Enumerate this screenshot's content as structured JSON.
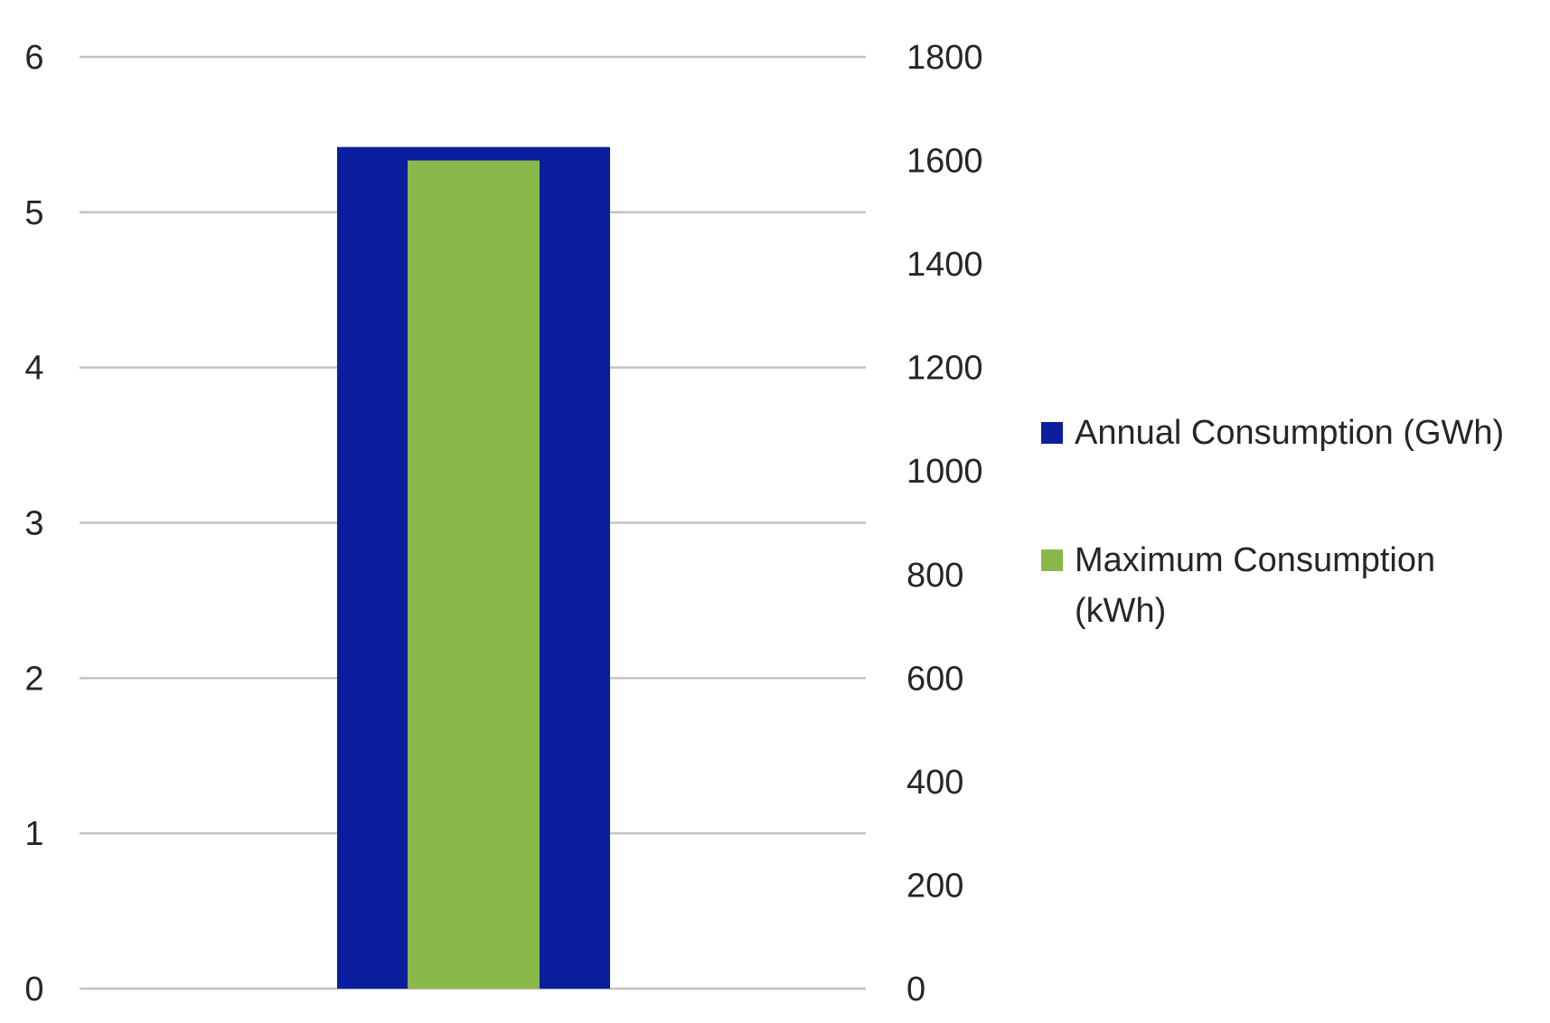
{
  "chart_data": {
    "type": "bar",
    "title": "",
    "xlabel": "",
    "categories": [
      ""
    ],
    "y_left": {
      "ylim": [
        0,
        6
      ],
      "ticks": [
        "0",
        "1",
        "2",
        "3",
        "4",
        "5",
        "6"
      ]
    },
    "y_right": {
      "ylim": [
        0,
        1800
      ],
      "ticks": [
        "0",
        "200",
        "400",
        "600",
        "800",
        "1000",
        "1200",
        "1400",
        "1600",
        "1800"
      ]
    },
    "series": [
      {
        "name": "Annual Consumption (GWh)",
        "axis": "left",
        "values": [
          5.42
        ],
        "color": "#0A1E9E"
      },
      {
        "name": "Maximum Consumption (kWh)",
        "axis": "right",
        "values": [
          1600
        ],
        "color": "#8AB84A"
      }
    ],
    "legend": {
      "position": "right",
      "items": [
        {
          "label_lines": [
            "Annual Consumption (GWh)"
          ],
          "color": "#0A1E9E"
        },
        {
          "label_lines": [
            "Maximum Consumption",
            "(kWh)"
          ],
          "color": "#8AB84A"
        }
      ]
    },
    "grid": true,
    "grid_color": "#C8C0C4"
  }
}
